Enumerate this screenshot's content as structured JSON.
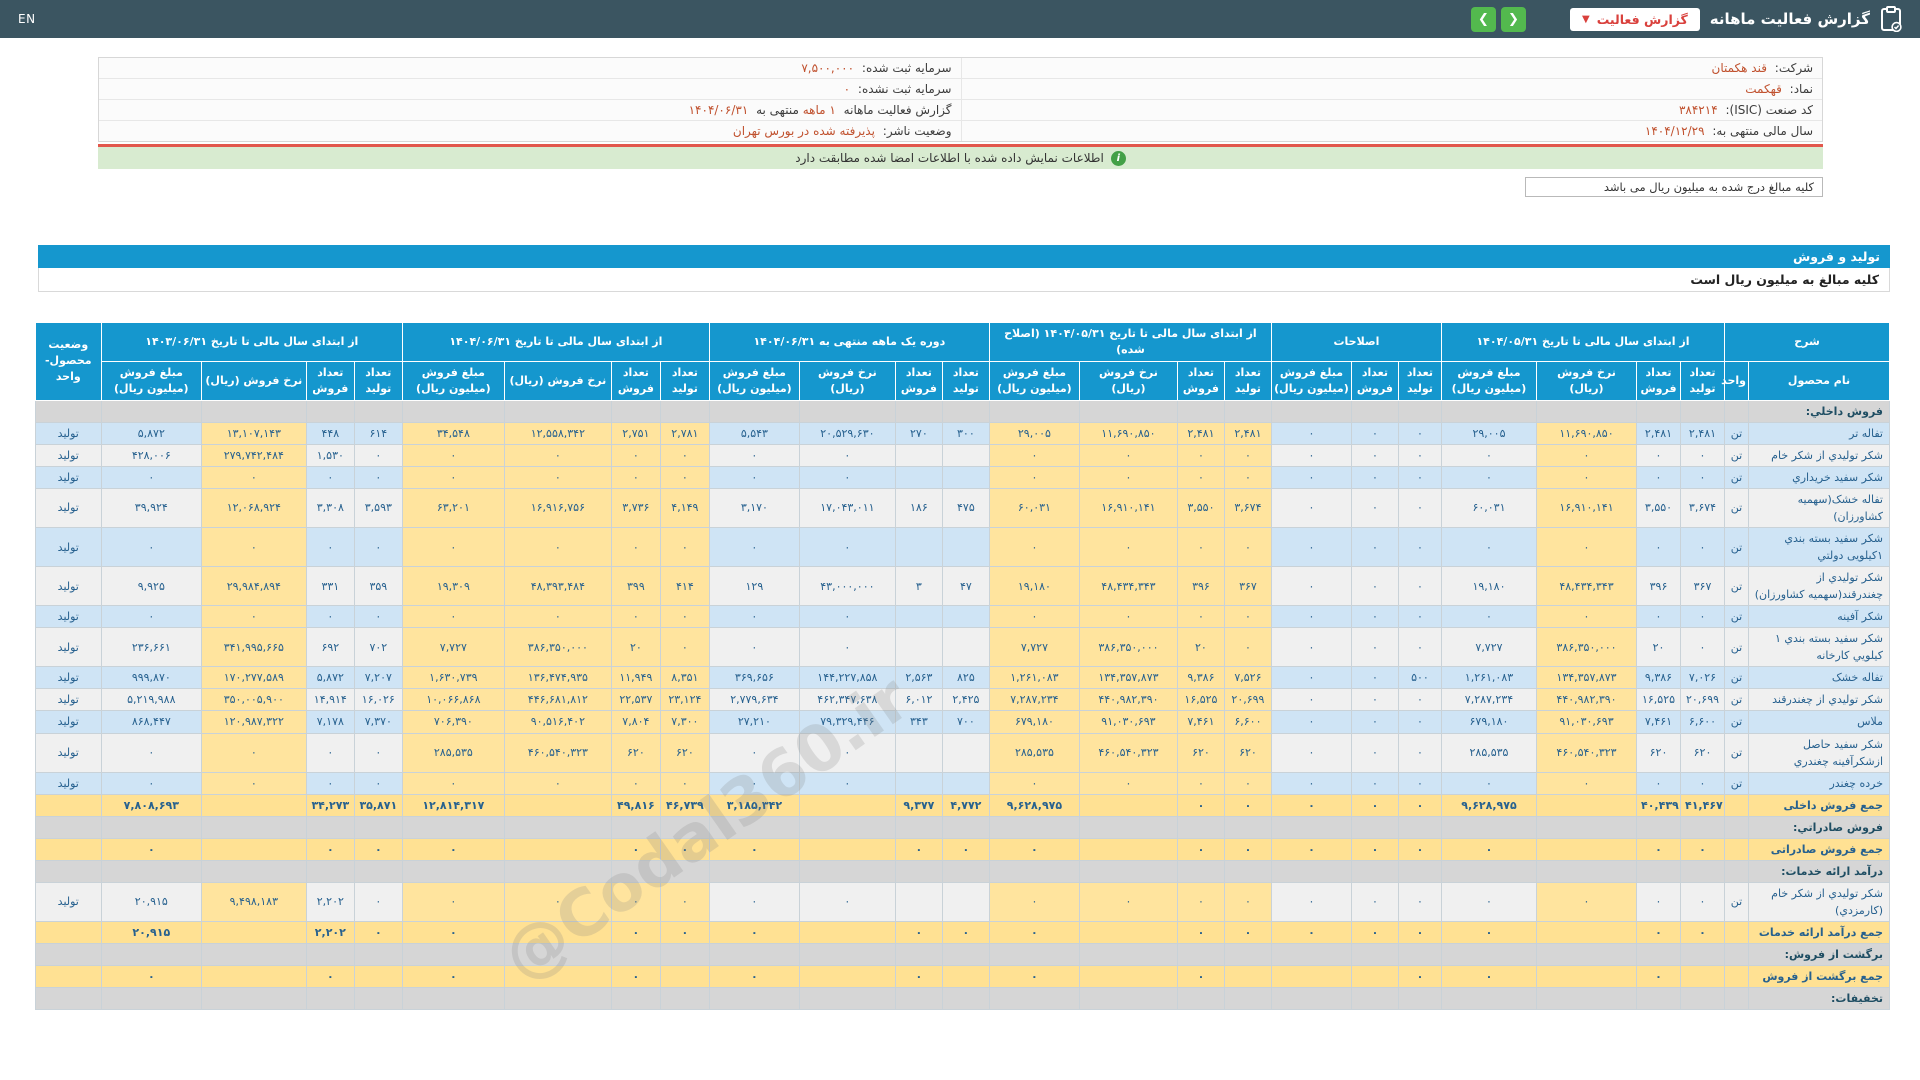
{
  "header": {
    "en_label": "EN",
    "title": "گزارش فعالیت ماهانه",
    "report_button": "گزارش فعالیت",
    "caret": "▼",
    "nav_back": "❮",
    "nav_forward": "❯"
  },
  "info": {
    "rows": [
      {
        "rl": "شرکت:",
        "rv": "قند هکمتان",
        "ll": "سرمایه ثبت شده:",
        "lv": "۷,۵۰۰,۰۰۰"
      },
      {
        "rl": "نماد:",
        "rv": "قهکمت",
        "ll": "سرمایه ثبت نشده:",
        "lv": "۰"
      },
      {
        "rl": "کد صنعت (ISIC):",
        "rv": "۳۸۴۲۱۴"
      },
      {
        "rl": "سال مالی منتهی به:",
        "rv": "۱۴۰۴/۱۲/۲۹",
        "ll": "وضعیت ناشر:",
        "lv": "پذیرفته شده در بورس تهران"
      }
    ],
    "report_line": {
      "p1": "گزارش فعالیت ماهانه",
      "h1": "۱ ماهه",
      "p2": "منتهی به",
      "h2": "۱۴۰۴/۰۶/۳۱"
    }
  },
  "notice": "اطلاعات نمایش داده شده با اطلاعات امضا شده مطابقت دارد",
  "unit_note": "کلیه مبالغ درج شده به میلیون ریال می باشد",
  "section": {
    "title": "تولید و فروش",
    "subtitle": "کلیه مبالغ به میلیون ریال است"
  },
  "watermark": "@Codal360.ir",
  "table": {
    "desc_header": "شرح",
    "name_header": "نام محصول",
    "unit_header": "واحد",
    "status_header": "وضعیت محصول-واحد",
    "sub4": [
      "تعداد تولید",
      "تعداد فروش",
      "نرخ فروش (ریال)",
      "مبلغ فروش (میلیون ریال)"
    ],
    "sub3": [
      "تعداد تولید",
      "تعداد فروش",
      "مبلغ فروش (میلیون ریال)"
    ],
    "groups": [
      {
        "key": "g1",
        "title": "از ابتدای سال مالی تا تاریخ ۱۴۰۴/۰۵/۳۱",
        "cols": 4
      },
      {
        "key": "adj",
        "title": "اصلاحات",
        "cols": 3
      },
      {
        "key": "g4",
        "title": "از ابتدای سال مالی تا تاریخ ۱۴۰۴/۰۵/۳۱ (اصلاح شده)",
        "cols": 4
      },
      {
        "key": "g5",
        "title": "دوره یک ماهه منتهی به ۱۴۰۴/۰۶/۳۱",
        "cols": 4
      },
      {
        "key": "g6",
        "title": "از ابتدای سال مالی تا تاریخ ۱۴۰۴/۰۶/۳۱",
        "cols": 4
      },
      {
        "key": "g7",
        "title": "از ابتدای سال مالی تا تاریخ ۱۴۰۳/۰۶/۳۱",
        "cols": 4
      }
    ],
    "rows": [
      {
        "type": "section",
        "name": "فروش داخلي:"
      },
      {
        "type": "data",
        "name": "تفاله تر",
        "unit": "تن",
        "g1": [
          "۲,۴۸۱",
          "۲,۴۸۱",
          "۱۱,۶۹۰,۸۵۰",
          "۲۹,۰۰۵"
        ],
        "adj": [
          "۰",
          "۰",
          "۰"
        ],
        "g4": [
          "۲,۴۸۱",
          "۲,۴۸۱",
          "۱۱,۶۹۰,۸۵۰",
          "۲۹,۰۰۵"
        ],
        "g5": [
          "۳۰۰",
          "۲۷۰",
          "۲۰,۵۲۹,۶۳۰",
          "۵,۵۴۳"
        ],
        "g6": [
          "۲,۷۸۱",
          "۲,۷۵۱",
          "۱۲,۵۵۸,۳۴۲",
          "۳۴,۵۴۸"
        ],
        "g7": [
          "۶۱۴",
          "۴۴۸",
          "۱۳,۱۰۷,۱۴۳",
          "۵,۸۷۲"
        ],
        "status": "تولید"
      },
      {
        "type": "data",
        "name": "شکر توليدي از شکر خام",
        "unit": "تن",
        "g1": [
          "۰",
          "۰",
          "۰",
          "۰"
        ],
        "adj": [
          "۰",
          "۰",
          "۰"
        ],
        "g4": [
          "۰",
          "۰",
          "۰",
          "۰"
        ],
        "g5": [
          "",
          "",
          "۰",
          "۰"
        ],
        "g6": [
          "۰",
          "۰",
          "۰",
          "۰"
        ],
        "g7": [
          "۰",
          "۱,۵۳۰",
          "۲۷۹,۷۴۲,۴۸۴",
          "۴۲۸,۰۰۶"
        ],
        "status": "تولید"
      },
      {
        "type": "data",
        "name": "شکر سفید خریداري",
        "unit": "تن",
        "g1": [
          "۰",
          "۰",
          "۰",
          "۰"
        ],
        "adj": [
          "۰",
          "۰",
          "۰"
        ],
        "g4": [
          "۰",
          "۰",
          "۰",
          "۰"
        ],
        "g5": [
          "",
          "",
          "۰",
          "۰"
        ],
        "g6": [
          "۰",
          "۰",
          "۰",
          "۰"
        ],
        "g7": [
          "۰",
          "۰",
          "۰",
          "۰"
        ],
        "status": "تولید"
      },
      {
        "type": "data",
        "name": "تفاله خشک(سهمیه کشاورزان)",
        "unit": "تن",
        "g1": [
          "۳,۶۷۴",
          "۳,۵۵۰",
          "۱۶,۹۱۰,۱۴۱",
          "۶۰,۰۳۱"
        ],
        "adj": [
          "۰",
          "۰",
          "۰"
        ],
        "g4": [
          "۳,۶۷۴",
          "۳,۵۵۰",
          "۱۶,۹۱۰,۱۴۱",
          "۶۰,۰۳۱"
        ],
        "g5": [
          "۴۷۵",
          "۱۸۶",
          "۱۷,۰۴۳,۰۱۱",
          "۳,۱۷۰"
        ],
        "g6": [
          "۴,۱۴۹",
          "۳,۷۳۶",
          "۱۶,۹۱۶,۷۵۶",
          "۶۳,۲۰۱"
        ],
        "g7": [
          "۳,۵۹۳",
          "۳,۳۰۸",
          "۱۲,۰۶۸,۹۲۴",
          "۳۹,۹۲۴"
        ],
        "status": "تولید"
      },
      {
        "type": "data",
        "name": "شکر سفید بسته بندي ۱کیلویی دولتي",
        "unit": "تن",
        "g1": [
          "۰",
          "۰",
          "۰",
          "۰"
        ],
        "adj": [
          "۰",
          "۰",
          "۰"
        ],
        "g4": [
          "۰",
          "۰",
          "۰",
          "۰"
        ],
        "g5": [
          "",
          "",
          "۰",
          "۰"
        ],
        "g6": [
          "۰",
          "۰",
          "۰",
          "۰"
        ],
        "g7": [
          "۰",
          "۰",
          "۰",
          "۰"
        ],
        "status": "تولید"
      },
      {
        "type": "data",
        "name": "شکر توليدي از چغندرقند(سهمیه کشاورزان)",
        "unit": "تن",
        "g1": [
          "۳۶۷",
          "۳۹۶",
          "۴۸,۴۳۴,۳۴۳",
          "۱۹,۱۸۰"
        ],
        "adj": [
          "۰",
          "۰",
          "۰"
        ],
        "g4": [
          "۳۶۷",
          "۳۹۶",
          "۴۸,۴۳۴,۳۴۳",
          "۱۹,۱۸۰"
        ],
        "g5": [
          "۴۷",
          "۳",
          "۴۳,۰۰۰,۰۰۰",
          "۱۲۹"
        ],
        "g6": [
          "۴۱۴",
          "۳۹۹",
          "۴۸,۳۹۳,۴۸۴",
          "۱۹,۳۰۹"
        ],
        "g7": [
          "۳۵۹",
          "۳۳۱",
          "۲۹,۹۸۴,۸۹۴",
          "۹,۹۲۵"
        ],
        "status": "تولید"
      },
      {
        "type": "data",
        "name": "شکر آفینه",
        "unit": "تن",
        "g1": [
          "۰",
          "۰",
          "۰",
          "۰"
        ],
        "adj": [
          "۰",
          "۰",
          "۰"
        ],
        "g4": [
          "۰",
          "۰",
          "۰",
          "۰"
        ],
        "g5": [
          "",
          "",
          "۰",
          "۰"
        ],
        "g6": [
          "۰",
          "۰",
          "۰",
          "۰"
        ],
        "g7": [
          "۰",
          "۰",
          "۰",
          "۰"
        ],
        "status": "تولید"
      },
      {
        "type": "data",
        "name": "شکر سفید بسته بندي ۱ کیلویي کارخانه",
        "unit": "تن",
        "g1": [
          "۰",
          "۲۰",
          "۳۸۶,۳۵۰,۰۰۰",
          "۷,۷۲۷"
        ],
        "adj": [
          "۰",
          "۰",
          "۰"
        ],
        "g4": [
          "۰",
          "۲۰",
          "۳۸۶,۳۵۰,۰۰۰",
          "۷,۷۲۷"
        ],
        "g5": [
          "",
          "",
          "۰",
          "۰"
        ],
        "g6": [
          "۰",
          "۲۰",
          "۳۸۶,۳۵۰,۰۰۰",
          "۷,۷۲۷"
        ],
        "g7": [
          "۷۰۲",
          "۶۹۲",
          "۳۴۱,۹۹۵,۶۶۵",
          "۲۳۶,۶۶۱"
        ],
        "status": "تولید"
      },
      {
        "type": "data",
        "name": "تفاله خشک",
        "unit": "تن",
        "g1": [
          "۷,۰۲۶",
          "۹,۳۸۶",
          "۱۳۴,۳۵۷,۸۷۳",
          "۱,۲۶۱,۰۸۳"
        ],
        "adj": [
          "۵۰۰",
          "۰",
          "۰"
        ],
        "g4": [
          "۷,۵۲۶",
          "۹,۳۸۶",
          "۱۳۴,۳۵۷,۸۷۳",
          "۱,۲۶۱,۰۸۳"
        ],
        "g5": [
          "۸۲۵",
          "۲,۵۶۳",
          "۱۴۴,۲۲۷,۸۵۸",
          "۳۶۹,۶۵۶"
        ],
        "g6": [
          "۸,۳۵۱",
          "۱۱,۹۴۹",
          "۱۳۶,۴۷۴,۹۳۵",
          "۱,۶۳۰,۷۳۹"
        ],
        "g7": [
          "۷,۲۰۷",
          "۵,۸۷۲",
          "۱۷۰,۲۷۷,۵۸۹",
          "۹۹۹,۸۷۰"
        ],
        "status": "تولید"
      },
      {
        "type": "data",
        "name": "شکر توليدي از چغندرقند",
        "unit": "تن",
        "g1": [
          "۲۰,۶۹۹",
          "۱۶,۵۲۵",
          "۴۴۰,۹۸۲,۳۹۰",
          "۷,۲۸۷,۲۳۴"
        ],
        "adj": [
          "۰",
          "۰",
          "۰"
        ],
        "g4": [
          "۲۰,۶۹۹",
          "۱۶,۵۲۵",
          "۴۴۰,۹۸۲,۳۹۰",
          "۷,۲۸۷,۲۳۴"
        ],
        "g5": [
          "۲,۴۲۵",
          "۶,۰۱۲",
          "۴۶۲,۳۴۷,۶۳۸",
          "۲,۷۷۹,۶۳۴"
        ],
        "g6": [
          "۲۳,۱۲۴",
          "۲۲,۵۳۷",
          "۴۴۶,۶۸۱,۸۱۲",
          "۱۰,۰۶۶,۸۶۸"
        ],
        "g7": [
          "۱۶,۰۲۶",
          "۱۴,۹۱۴",
          "۳۵۰,۰۰۵,۹۰۰",
          "۵,۲۱۹,۹۸۸"
        ],
        "status": "تولید"
      },
      {
        "type": "data",
        "name": "ملاس",
        "unit": "تن",
        "g1": [
          "۶,۶۰۰",
          "۷,۴۶۱",
          "۹۱,۰۳۰,۶۹۳",
          "۶۷۹,۱۸۰"
        ],
        "adj": [
          "۰",
          "۰",
          "۰"
        ],
        "g4": [
          "۶,۶۰۰",
          "۷,۴۶۱",
          "۹۱,۰۳۰,۶۹۳",
          "۶۷۹,۱۸۰"
        ],
        "g5": [
          "۷۰۰",
          "۳۴۳",
          "۷۹,۳۲۹,۴۴۶",
          "۲۷,۲۱۰"
        ],
        "g6": [
          "۷,۳۰۰",
          "۷,۸۰۴",
          "۹۰,۵۱۶,۴۰۲",
          "۷۰۶,۳۹۰"
        ],
        "g7": [
          "۷,۳۷۰",
          "۷,۱۷۸",
          "۱۲۰,۹۸۷,۳۲۲",
          "۸۶۸,۴۴۷"
        ],
        "status": "تولید"
      },
      {
        "type": "data",
        "name": "شکر سفید حاصل ازشکرآفینه چغندري",
        "unit": "تن",
        "g1": [
          "۶۲۰",
          "۶۲۰",
          "۴۶۰,۵۴۰,۳۲۳",
          "۲۸۵,۵۳۵"
        ],
        "adj": [
          "۰",
          "۰",
          "۰"
        ],
        "g4": [
          "۶۲۰",
          "۶۲۰",
          "۴۶۰,۵۴۰,۳۲۳",
          "۲۸۵,۵۳۵"
        ],
        "g5": [
          "",
          "",
          "۰",
          "۰"
        ],
        "g6": [
          "۶۲۰",
          "۶۲۰",
          "۴۶۰,۵۴۰,۳۲۳",
          "۲۸۵,۵۳۵"
        ],
        "g7": [
          "۰",
          "۰",
          "۰",
          "۰"
        ],
        "status": "تولید"
      },
      {
        "type": "data",
        "name": "خرده چغندر",
        "unit": "تن",
        "g1": [
          "۰",
          "۰",
          "۰",
          "۰"
        ],
        "adj": [
          "۰",
          "۰",
          "۰"
        ],
        "g4": [
          "۰",
          "۰",
          "۰",
          "۰"
        ],
        "g5": [
          "",
          "",
          "۰",
          "۰"
        ],
        "g6": [
          "۰",
          "۰",
          "۰",
          "۰"
        ],
        "g7": [
          "۰",
          "۰",
          "۰",
          "۰"
        ],
        "status": "تولید"
      },
      {
        "type": "summary",
        "name": "جمع فروش داخلی",
        "unit": "",
        "g1": [
          "۴۱,۴۶۷",
          "۴۰,۴۳۹",
          "",
          "۹,۶۲۸,۹۷۵"
        ],
        "adj": [
          "۰",
          "۰",
          "۰"
        ],
        "g4": [
          "۰",
          "۰",
          "",
          "۹,۶۲۸,۹۷۵"
        ],
        "g5": [
          "۴,۷۷۲",
          "۹,۳۷۷",
          "",
          "۳,۱۸۵,۳۴۲"
        ],
        "g6": [
          "۴۶,۷۳۹",
          "۴۹,۸۱۶",
          "",
          "۱۲,۸۱۴,۳۱۷"
        ],
        "g7": [
          "۳۵,۸۷۱",
          "۳۴,۲۷۳",
          "",
          "۷,۸۰۸,۶۹۳"
        ],
        "status": ""
      },
      {
        "type": "section",
        "name": "فروش صادراتي:"
      },
      {
        "type": "summary",
        "name": "جمع فروش صادراتی",
        "unit": "",
        "g1": [
          "۰",
          "۰",
          "",
          "۰"
        ],
        "adj": [
          "۰",
          "۰",
          "۰"
        ],
        "g4": [
          "۰",
          "۰",
          "",
          "۰"
        ],
        "g5": [
          "۰",
          "۰",
          "",
          "۰"
        ],
        "g6": [
          "۰",
          "۰",
          "",
          "۰"
        ],
        "g7": [
          "۰",
          "۰",
          "",
          "۰"
        ],
        "status": ""
      },
      {
        "type": "section",
        "name": "درآمد ارائه خدمات:"
      },
      {
        "type": "data",
        "name": "شکر توليدي از شکر خام (کارمزدي)",
        "unit": "تن",
        "g1": [
          "۰",
          "۰",
          "۰",
          "۰"
        ],
        "adj": [
          "۰",
          "۰",
          "۰"
        ],
        "g4": [
          "۰",
          "۰",
          "۰",
          "۰"
        ],
        "g5": [
          "",
          "",
          "۰",
          "۰"
        ],
        "g6": [
          "۰",
          "۰",
          "۰",
          "۰"
        ],
        "g7": [
          "۰",
          "۲,۲۰۲",
          "۹,۴۹۸,۱۸۳",
          "۲۰,۹۱۵"
        ],
        "status": "تولید"
      },
      {
        "type": "summary",
        "name": "جمع درآمد ارائه خدمات",
        "unit": "",
        "g1": [
          "۰",
          "۰",
          "",
          "۰"
        ],
        "adj": [
          "۰",
          "۰",
          "۰"
        ],
        "g4": [
          "۰",
          "۰",
          "",
          "۰"
        ],
        "g5": [
          "۰",
          "۰",
          "",
          "۰"
        ],
        "g6": [
          "۰",
          "۰",
          "",
          "۰"
        ],
        "g7": [
          "۰",
          "۲,۲۰۲",
          "",
          "۲۰,۹۱۵"
        ],
        "status": ""
      },
      {
        "type": "section",
        "name": "برگشت از فروش:"
      },
      {
        "type": "summary",
        "name": "جمع برگشت از فروش",
        "unit": "",
        "g1": [
          "",
          "۰",
          "",
          "۰"
        ],
        "adj": [
          "۰",
          "",
          ""
        ],
        "g4": [
          "",
          "۰",
          "",
          "۰"
        ],
        "g5": [
          "",
          "۰",
          "",
          "۰"
        ],
        "g6": [
          "",
          "۰",
          "",
          "۰"
        ],
        "g7": [
          "",
          "۰",
          "",
          "۰"
        ],
        "status": ""
      },
      {
        "type": "section",
        "name": "تخفیفات:"
      }
    ]
  }
}
